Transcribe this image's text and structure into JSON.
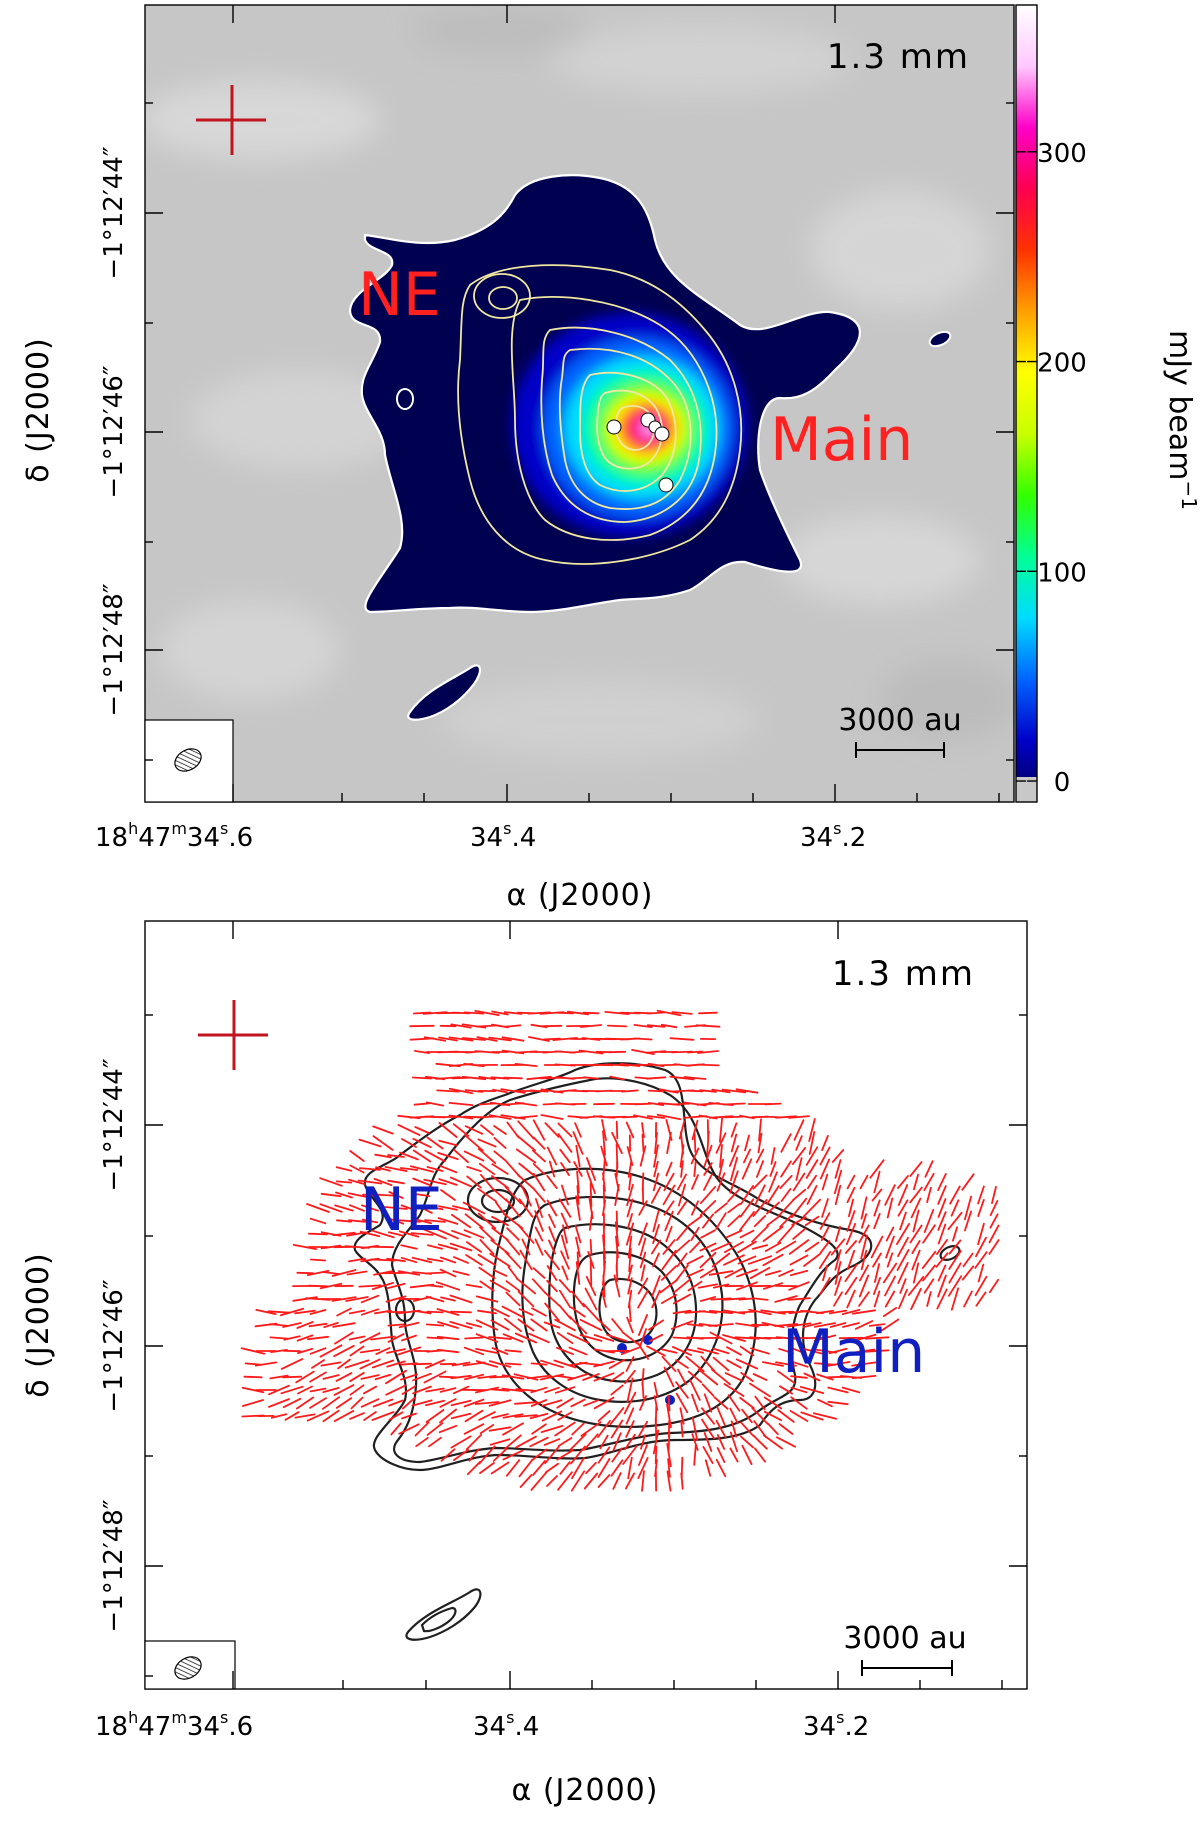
{
  "chart_data": [
    {
      "type": "heatmap",
      "panel": "top",
      "band_label": "1.3 mm",
      "xlabel": "α (J2000)",
      "ylabel": "δ (J2000)",
      "x_ticks": [
        {
          "main": "18",
          "sup1": "h",
          "mid": "47",
          "sup2": "m",
          "tail": "34",
          "sup3": "s",
          "end": ".6"
        },
        {
          "main": "34",
          "sup3": "s",
          "end": ".4"
        },
        {
          "main": "34",
          "sup3": "s",
          "end": ".2"
        }
      ],
      "y_ticks": [
        "−1°12′44″",
        "−1°12′46″",
        "−1°12′48″"
      ],
      "colorbar": {
        "label": "mJy beam",
        "label_exp": "−1",
        "ticks": [
          "0",
          "100",
          "200",
          "300"
        ],
        "tick_values": [
          0,
          100,
          200,
          300
        ],
        "range": [
          -10,
          370
        ],
        "colormap": [
          "#000050",
          "#0000c8",
          "#0064ff",
          "#00dcff",
          "#00ff96",
          "#32ff00",
          "#c8ff00",
          "#ffff00",
          "#ffa000",
          "#ff3200",
          "#ff0050",
          "#ff00c8",
          "#ffc8ff",
          "#ffffff"
        ],
        "zero_color": "#c8c8c8"
      },
      "regions": [
        {
          "label": "NE",
          "color": "#ff2020"
        },
        {
          "label": "Main",
          "color": "#ff2020"
        }
      ],
      "peak_mJy": 350,
      "scalebar": "3000 au",
      "contour_color": "#f0e8a0",
      "sources": 5
    },
    {
      "type": "scatter",
      "panel": "bottom",
      "band_label": "1.3 mm",
      "xlabel": "α (J2000)",
      "ylabel": "δ (J2000)",
      "x_ticks": [
        {
          "main": "18",
          "sup1": "h",
          "mid": "47",
          "sup2": "m",
          "tail": "34",
          "sup3": "s",
          "end": ".6"
        },
        {
          "main": "34",
          "sup3": "s",
          "end": ".4"
        },
        {
          "main": "34",
          "sup3": "s",
          "end": ".2"
        }
      ],
      "y_ticks": [
        "−1°12′44″",
        "−1°12′46″",
        "−1°12′48″"
      ],
      "regions": [
        {
          "label": "NE",
          "color": "#1020c0"
        },
        {
          "label": "Main",
          "color": "#1020c0"
        }
      ],
      "scalebar": "3000 au",
      "vector_color": "#ff1a1a",
      "contour_color": "#202020"
    }
  ]
}
